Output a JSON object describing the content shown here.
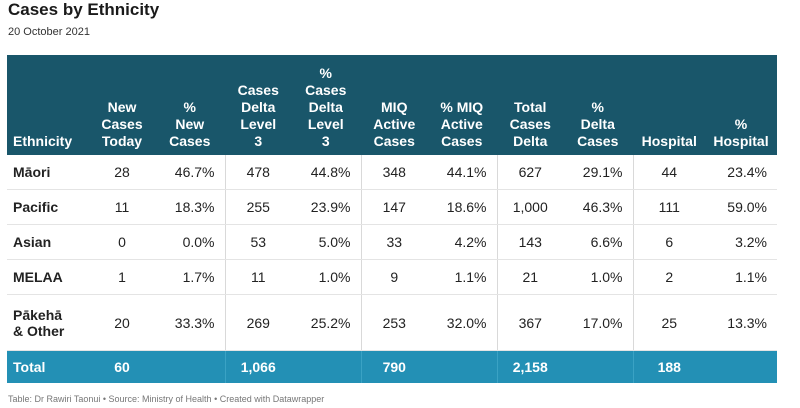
{
  "title": "Cases by Ethnicity",
  "subtitle": "20 October 2021",
  "columns": [
    "Ethnicity",
    "New\nCases\nToday",
    "%\nNew\nCases",
    "Cases\nDelta\nLevel\n3",
    "%\nCases\nDelta\nLevel\n3",
    "MIQ\nActive\nCases",
    "% MIQ\nActive\nCases",
    "Total\nCases\nDelta",
    "%\nDelta\nCases",
    "Hospital",
    "%\nHospital"
  ],
  "rows": [
    [
      "Māori",
      "28",
      "46.7%",
      "478",
      "44.8%",
      "348",
      "44.1%",
      "627",
      "29.1%",
      "44",
      "23.4%"
    ],
    [
      "Pacific",
      "11",
      "18.3%",
      "255",
      "23.9%",
      "147",
      "18.6%",
      "1,000",
      "46.3%",
      "111",
      "59.0%"
    ],
    [
      "Asian",
      "0",
      "0.0%",
      "53",
      "5.0%",
      "33",
      "4.2%",
      "143",
      "6.6%",
      "6",
      "3.2%"
    ],
    [
      "MELAA",
      "1",
      "1.7%",
      "11",
      "1.0%",
      "9",
      "1.1%",
      "21",
      "1.0%",
      "2",
      "1.1%"
    ],
    [
      "Pākehā\n& Other",
      "20",
      "33.3%",
      "269",
      "25.2%",
      "253",
      "32.0%",
      "367",
      "17.0%",
      "25",
      "13.3%"
    ]
  ],
  "total": [
    "Total",
    "60",
    "",
    "1,066",
    "",
    "790",
    "",
    "2,158",
    "",
    "188",
    ""
  ],
  "footer": "Table: Dr Rawiri Taonui • Source: Ministry of Health • Created with Datawrapper",
  "colors": {
    "header_bg": "#19566a",
    "total_bg": "#2390b5"
  }
}
